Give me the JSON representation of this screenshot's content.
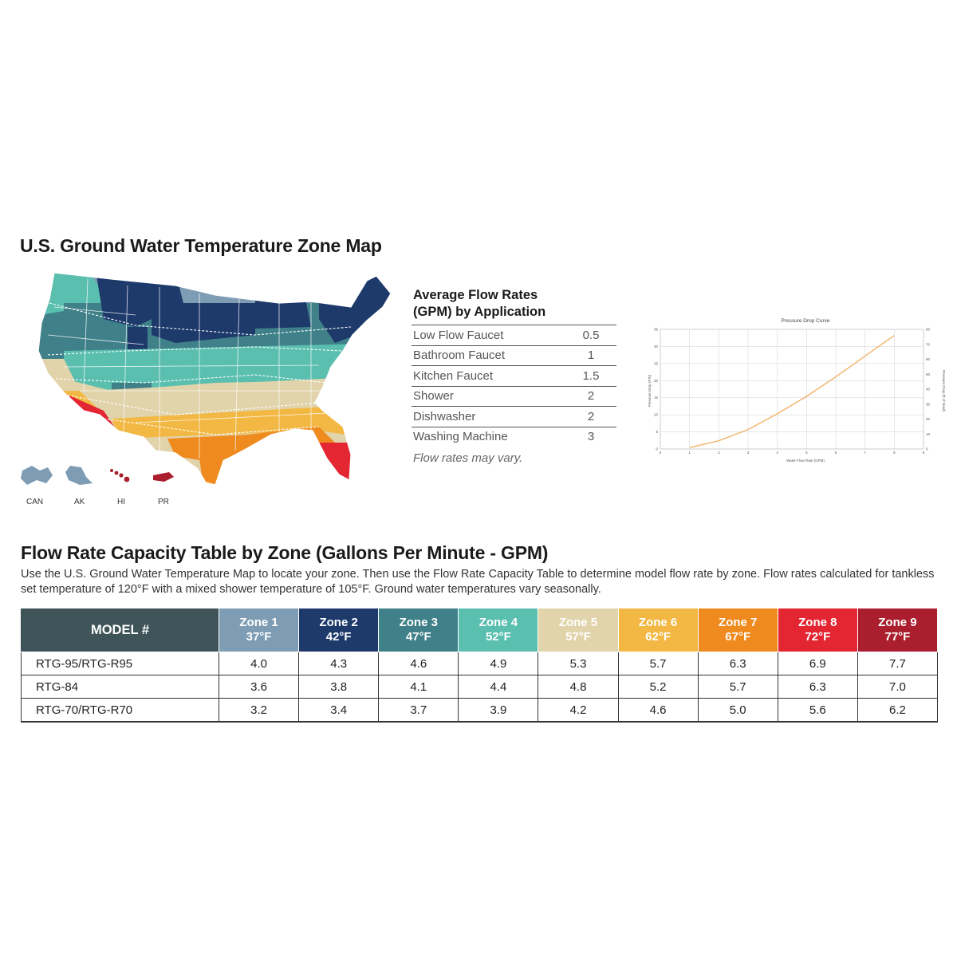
{
  "map": {
    "title": "U.S. Ground Water Temperature Zone Map",
    "insets": [
      "CAN",
      "AK",
      "HI",
      "PR"
    ]
  },
  "flow_rates": {
    "title_line1": "Average Flow Rates",
    "title_line2": "(GPM) by Application",
    "rows": [
      {
        "app": "Low Flow Faucet",
        "gpm": "0.5"
      },
      {
        "app": "Bathroom Faucet",
        "gpm": "1"
      },
      {
        "app": "Kitchen Faucet",
        "gpm": "1.5"
      },
      {
        "app": "Shower",
        "gpm": "2"
      },
      {
        "app": "Dishwasher",
        "gpm": "2"
      },
      {
        "app": "Washing Machine",
        "gpm": "3"
      }
    ],
    "note": "Flow rates may vary."
  },
  "chart_data": {
    "type": "line",
    "title": "Pressure Drop Curve",
    "xlabel": "Water Flow Rate (GPM)",
    "ylabel": "Pressure Drop (PSI)",
    "y2label": "Pressure Drop (ft of head)",
    "xlim": [
      0,
      9
    ],
    "ylim": [
      0,
      35
    ],
    "y2lim": [
      0,
      80
    ],
    "x_ticks": [
      "0",
      "1",
      "2",
      "3",
      "4",
      "5",
      "6",
      "7",
      "8",
      "9"
    ],
    "y_ticks": [
      "0",
      "5",
      "10",
      "15",
      "20",
      "25",
      "30",
      "35"
    ],
    "y2_ticks": [
      "0",
      "10",
      "20",
      "30",
      "40",
      "50",
      "60",
      "70",
      "80"
    ],
    "series": [
      {
        "x": [
          1,
          2,
          3,
          4,
          5,
          6,
          7,
          8
        ],
        "y": [
          0.4,
          2.4,
          5.7,
          10.3,
          15.4,
          21.1,
          27.2,
          33.2
        ]
      }
    ],
    "line_color": "#f2b36a",
    "grid": true
  },
  "capacity": {
    "title": "Flow Rate Capacity Table by Zone (Gallons Per Minute - GPM)",
    "description": "Use the U.S. Ground Water Temperature Map to locate your zone. Then use the Flow Rate Capacity Table to determine model flow rate by zone. Flow rates calculated for tankless set temperature of 120°F with a mixed shower temperature of 105°F. Ground water temperatures vary seasonally.",
    "model_header": "MODEL #",
    "zones": [
      {
        "name": "Zone 1",
        "temp": "37°F",
        "color": "#7e9db5"
      },
      {
        "name": "Zone 2",
        "temp": "42°F",
        "color": "#1d3a6b"
      },
      {
        "name": "Zone 3",
        "temp": "47°F",
        "color": "#3f8089"
      },
      {
        "name": "Zone 4",
        "temp": "52°F",
        "color": "#5bbfb0"
      },
      {
        "name": "Zone 5",
        "temp": "57°F",
        "color": "#e1d3aa"
      },
      {
        "name": "Zone 6",
        "temp": "62°F",
        "color": "#f2b843"
      },
      {
        "name": "Zone 7",
        "temp": "67°F",
        "color": "#ef8a1f"
      },
      {
        "name": "Zone 8",
        "temp": "72°F",
        "color": "#e42532"
      },
      {
        "name": "Zone 9",
        "temp": "77°F",
        "color": "#aa1e2d"
      }
    ],
    "rows": [
      {
        "model": "RTG-95/RTG-R95",
        "values": [
          "4.0",
          "4.3",
          "4.6",
          "4.9",
          "5.3",
          "5.7",
          "6.3",
          "6.9",
          "7.7"
        ]
      },
      {
        "model": "RTG-84",
        "values": [
          "3.6",
          "3.8",
          "4.1",
          "4.4",
          "4.8",
          "5.2",
          "5.7",
          "6.3",
          "7.0"
        ]
      },
      {
        "model": "RTG-70/RTG-R70",
        "values": [
          "3.2",
          "3.4",
          "3.7",
          "3.9",
          "4.2",
          "4.6",
          "5.0",
          "5.6",
          "6.2"
        ]
      }
    ]
  }
}
